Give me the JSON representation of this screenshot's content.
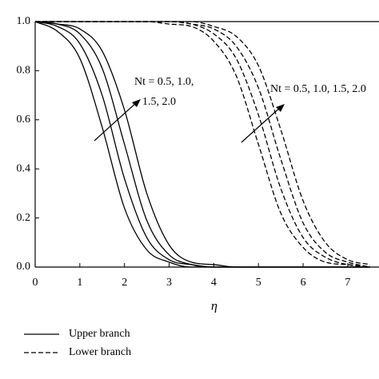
{
  "chart_data": {
    "type": "line",
    "x": [
      0,
      0.5,
      1,
      1.5,
      2,
      2.5,
      3,
      3.5,
      4,
      4.5,
      5,
      5.5,
      6,
      6.5,
      7,
      7.5
    ],
    "series": [
      {
        "style": "solid",
        "color": "#000000",
        "values": [
          1,
          0.96,
          0.85,
          0.57,
          0.24,
          0.07,
          0.02,
          0,
          0,
          0,
          0,
          0,
          0,
          0,
          0,
          0
        ]
      },
      {
        "style": "solid",
        "color": "#000000",
        "values": [
          1,
          0.98,
          0.91,
          0.7,
          0.36,
          0.12,
          0.03,
          0.01,
          0,
          0,
          0,
          0,
          0,
          0,
          0,
          0
        ]
      },
      {
        "style": "solid",
        "color": "#000000",
        "values": [
          1,
          0.99,
          0.95,
          0.81,
          0.5,
          0.19,
          0.05,
          0.01,
          0,
          0,
          0,
          0,
          0,
          0,
          0,
          0
        ]
      },
      {
        "style": "solid",
        "color": "#000000",
        "values": [
          1,
          0.99,
          0.97,
          0.88,
          0.64,
          0.3,
          0.09,
          0.02,
          0.01,
          0,
          0,
          0,
          0,
          0,
          0,
          0
        ]
      },
      {
        "style": "dashed",
        "color": "#000000",
        "values": [
          1,
          1,
          1,
          1,
          1,
          1,
          0.99,
          0.98,
          0.92,
          0.78,
          0.5,
          0.22,
          0.08,
          0.02,
          0.01,
          0
        ]
      },
      {
        "style": "dashed",
        "color": "#000000",
        "values": [
          1,
          1,
          1,
          1,
          1,
          1,
          1,
          0.99,
          0.95,
          0.85,
          0.62,
          0.32,
          0.12,
          0.04,
          0.01,
          0
        ]
      },
      {
        "style": "dashed",
        "color": "#000000",
        "values": [
          1,
          1,
          1,
          1,
          1,
          1,
          1,
          0.99,
          0.97,
          0.9,
          0.73,
          0.44,
          0.18,
          0.06,
          0.02,
          0
        ]
      },
      {
        "style": "dashed",
        "color": "#000000",
        "values": [
          1,
          1,
          1,
          1,
          1,
          1,
          1,
          1,
          0.98,
          0.94,
          0.82,
          0.56,
          0.27,
          0.1,
          0.03,
          0.01
        ]
      }
    ],
    "xlim": [
      0,
      7.7
    ],
    "ylim": [
      0,
      1
    ],
    "xticks": [
      0,
      1,
      2,
      3,
      4,
      5,
      6,
      7
    ],
    "yticks": [
      {
        "value": 0,
        "label": "0.0"
      },
      {
        "value": 0.2,
        "label": "0.2"
      },
      {
        "value": 0.4,
        "label": "0.4"
      },
      {
        "value": 0.6,
        "label": "0.6"
      },
      {
        "value": 0.8,
        "label": "0.8"
      },
      {
        "value": 1,
        "label": "1.0"
      }
    ],
    "xlabel": "η",
    "annotations": [
      [
        "Nt = 0.5, 1.0,",
        "1.5, 2.0"
      ],
      [
        "Nt = 0.5, 1.0, 1.5, 2.0"
      ]
    ],
    "legend": [
      {
        "label": "Upper branch",
        "style": "solid"
      },
      {
        "label": "Lower branch",
        "style": "dashed"
      }
    ]
  }
}
